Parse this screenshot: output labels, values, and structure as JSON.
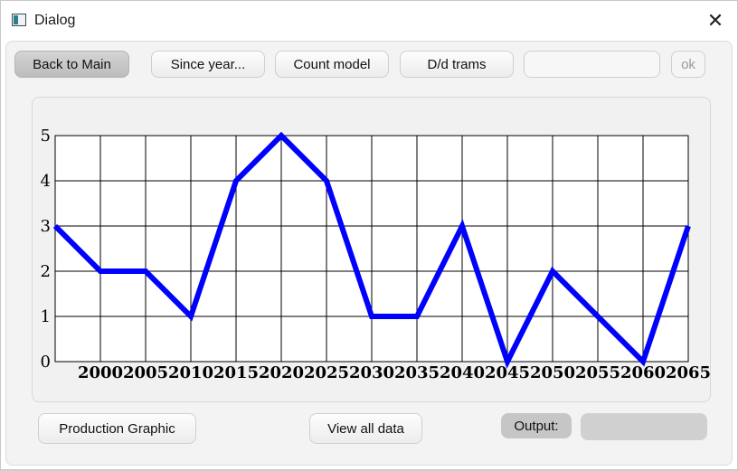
{
  "window": {
    "title": "Dialog"
  },
  "toolbar": {
    "back_label": "Back to Main",
    "since_year_label": "Since year...",
    "count_model_label": "Count model",
    "dd_trams_label": "D/d trams",
    "input_value": "",
    "ok_label": "ok"
  },
  "footer": {
    "production_label": "Production Graphic",
    "view_all_label": "View all data",
    "output_label": "Output:",
    "output_value": ""
  },
  "chart_data": {
    "type": "line",
    "x": [
      1995,
      2000,
      2005,
      2010,
      2015,
      2020,
      2025,
      2030,
      2035,
      2040,
      2045,
      2050,
      2055,
      2060,
      2065
    ],
    "x_tick_labels": [
      "2000",
      "2005",
      "2010",
      "2015",
      "2020",
      "2025",
      "2030",
      "2035",
      "2040",
      "2045",
      "2050",
      "2055",
      "2060",
      "2065"
    ],
    "y_tick_labels": [
      "0",
      "1",
      "2",
      "3",
      "4",
      "5"
    ],
    "values": [
      3,
      2,
      2,
      1,
      4,
      5,
      4,
      1,
      1,
      3,
      0,
      2,
      1,
      0,
      3
    ],
    "xlim": [
      1995,
      2065
    ],
    "ylim": [
      0,
      5
    ],
    "grid": true,
    "line_color": "#0000ff"
  }
}
